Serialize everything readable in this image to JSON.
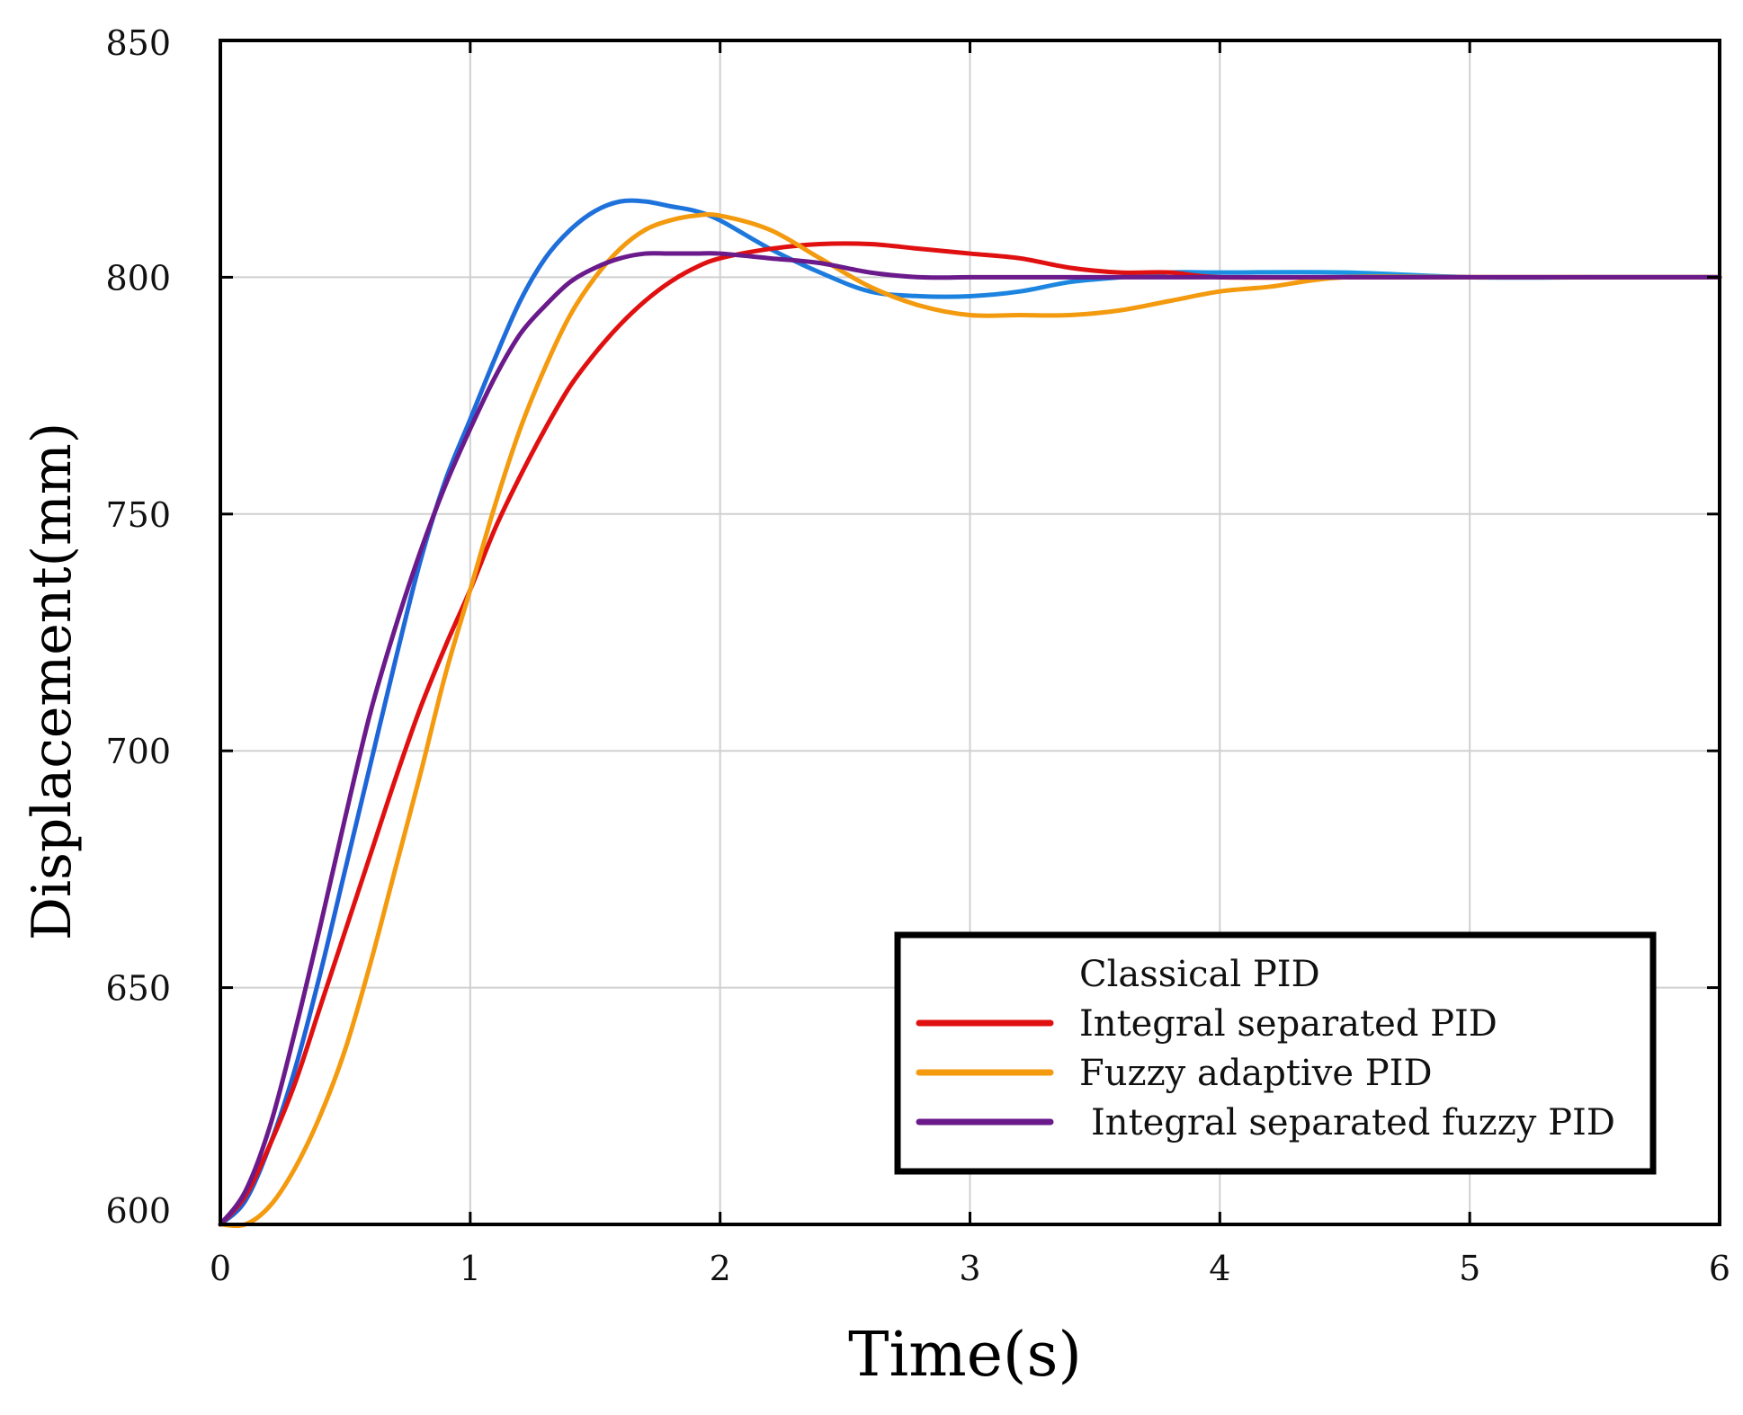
{
  "chart_data": {
    "type": "line",
    "title": "",
    "xlabel": "Time(s)",
    "ylabel": "Displacement(mm)",
    "xlim": [
      0,
      6
    ],
    "ylim": [
      600,
      850
    ],
    "xticks": [
      0,
      1,
      2,
      3,
      4,
      5,
      6
    ],
    "yticks": [
      600,
      650,
      700,
      750,
      800,
      850
    ],
    "grid": true,
    "legend_position": "bottom-right",
    "series": [
      {
        "name": "Classical PID",
        "color": "#1f5fd6",
        "gradient_end": "#19a6e8",
        "x": [
          0,
          0.1,
          0.2,
          0.3,
          0.4,
          0.5,
          0.6,
          0.7,
          0.8,
          0.9,
          1.0,
          1.1,
          1.2,
          1.3,
          1.4,
          1.5,
          1.6,
          1.7,
          1.8,
          1.9,
          2.0,
          2.2,
          2.4,
          2.6,
          2.8,
          3.0,
          3.2,
          3.4,
          3.6,
          3.8,
          4.0,
          4.5,
          5.0,
          5.5,
          6.0
        ],
        "y": [
          600,
          605,
          617,
          633,
          653,
          675,
          697,
          719,
          740,
          757,
          770,
          783,
          795,
          804,
          810,
          814,
          816,
          816,
          815,
          814,
          812,
          806,
          801,
          797,
          796,
          796,
          797,
          799,
          800,
          801,
          801,
          801,
          800,
          800,
          800
        ]
      },
      {
        "name": "Integral separated PID",
        "color": "#e01010",
        "x": [
          0,
          0.1,
          0.2,
          0.3,
          0.4,
          0.5,
          0.6,
          0.7,
          0.8,
          0.9,
          1.0,
          1.1,
          1.2,
          1.3,
          1.4,
          1.5,
          1.6,
          1.7,
          1.8,
          1.9,
          2.0,
          2.2,
          2.4,
          2.6,
          2.8,
          3.0,
          3.2,
          3.4,
          3.6,
          3.8,
          4.0,
          4.5,
          5.0,
          5.5,
          6.0
        ],
        "y": [
          600,
          606,
          617,
          630,
          646,
          662,
          678,
          694,
          709,
          722,
          734,
          747,
          758,
          768,
          777,
          784,
          790,
          795,
          799,
          802,
          804,
          806,
          807,
          807,
          806,
          805,
          804,
          802,
          801,
          801,
          800,
          800,
          800,
          800,
          800
        ]
      },
      {
        "name": "Fuzzy adaptive PID",
        "color": "#f39a0e",
        "x": [
          0,
          0.1,
          0.2,
          0.3,
          0.4,
          0.5,
          0.6,
          0.7,
          0.8,
          0.9,
          1.0,
          1.1,
          1.2,
          1.3,
          1.4,
          1.5,
          1.6,
          1.7,
          1.8,
          1.9,
          2.0,
          2.2,
          2.4,
          2.6,
          2.8,
          3.0,
          3.2,
          3.4,
          3.6,
          3.8,
          4.0,
          4.2,
          4.5,
          5.0,
          5.5,
          6.0
        ],
        "y": [
          600,
          600,
          604,
          612,
          623,
          637,
          655,
          675,
          695,
          716,
          734,
          752,
          768,
          781,
          792,
          800,
          806,
          810,
          812,
          813,
          813,
          810,
          804,
          798,
          794,
          792,
          792,
          792,
          793,
          795,
          797,
          798,
          800,
          800,
          800,
          800
        ]
      },
      {
        "name": "Integral separated fuzzy PID",
        "color": "#6a1a8a",
        "x": [
          0,
          0.1,
          0.2,
          0.3,
          0.4,
          0.5,
          0.6,
          0.7,
          0.8,
          0.9,
          1.0,
          1.1,
          1.2,
          1.3,
          1.4,
          1.5,
          1.6,
          1.7,
          1.8,
          1.9,
          2.0,
          2.2,
          2.4,
          2.6,
          2.8,
          3.0,
          3.2,
          3.4,
          3.6,
          4.0,
          4.5,
          5.0,
          5.5,
          6.0
        ],
        "y": [
          600,
          607,
          621,
          641,
          663,
          686,
          708,
          726,
          742,
          756,
          768,
          779,
          788,
          794,
          799,
          802,
          804,
          805,
          805,
          805,
          805,
          804,
          803,
          801,
          800,
          800,
          800,
          800,
          800,
          800,
          800,
          800,
          800,
          800
        ]
      }
    ]
  }
}
